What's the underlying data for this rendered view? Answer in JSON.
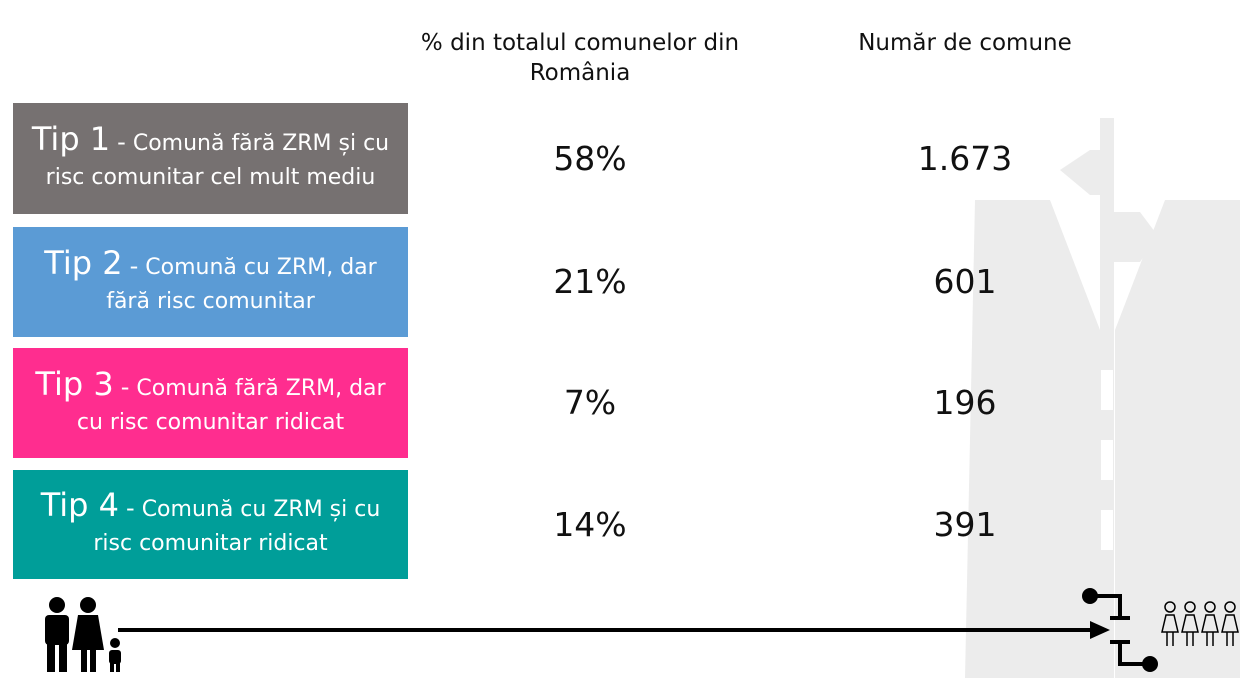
{
  "header": {
    "percent": "% din totalul comunelor din România",
    "count": "Număr de comune"
  },
  "rows": [
    {
      "type": "Tip 1",
      "sep": "-",
      "description": "Comună fără ZRM și cu risc comunitar cel mult mediu",
      "color": "#767171",
      "percent": "58%",
      "count": "1.673"
    },
    {
      "type": "Tip 2",
      "sep": "-",
      "description": "Comună cu ZRM, dar fără risc comunitar",
      "color": "#5b9bd5",
      "percent": "21%",
      "count": "601"
    },
    {
      "type": "Tip 3",
      "sep": "-",
      "description": "Comună fără ZRM, dar cu risc comunitar ridicat",
      "color": "#ff2d8f",
      "percent": "7%",
      "count": "196"
    },
    {
      "type": "Tip 4",
      "sep": "-",
      "description": "Comună cu ZRM și cu risc comunitar ridicat",
      "color": "#009e99",
      "percent": "14%",
      "count": "391"
    }
  ]
}
